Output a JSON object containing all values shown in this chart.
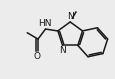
{
  "bg_color": "#ececec",
  "line_color": "#1a1a1a",
  "line_width": 1.1,
  "text_color": "#1a1a1a",
  "font_size": 6.5,
  "figsize": [
    1.16,
    0.79
  ],
  "dpi": 100,
  "xlim": [
    0.0,
    7.0
  ],
  "ylim": [
    0.0,
    5.0
  ]
}
